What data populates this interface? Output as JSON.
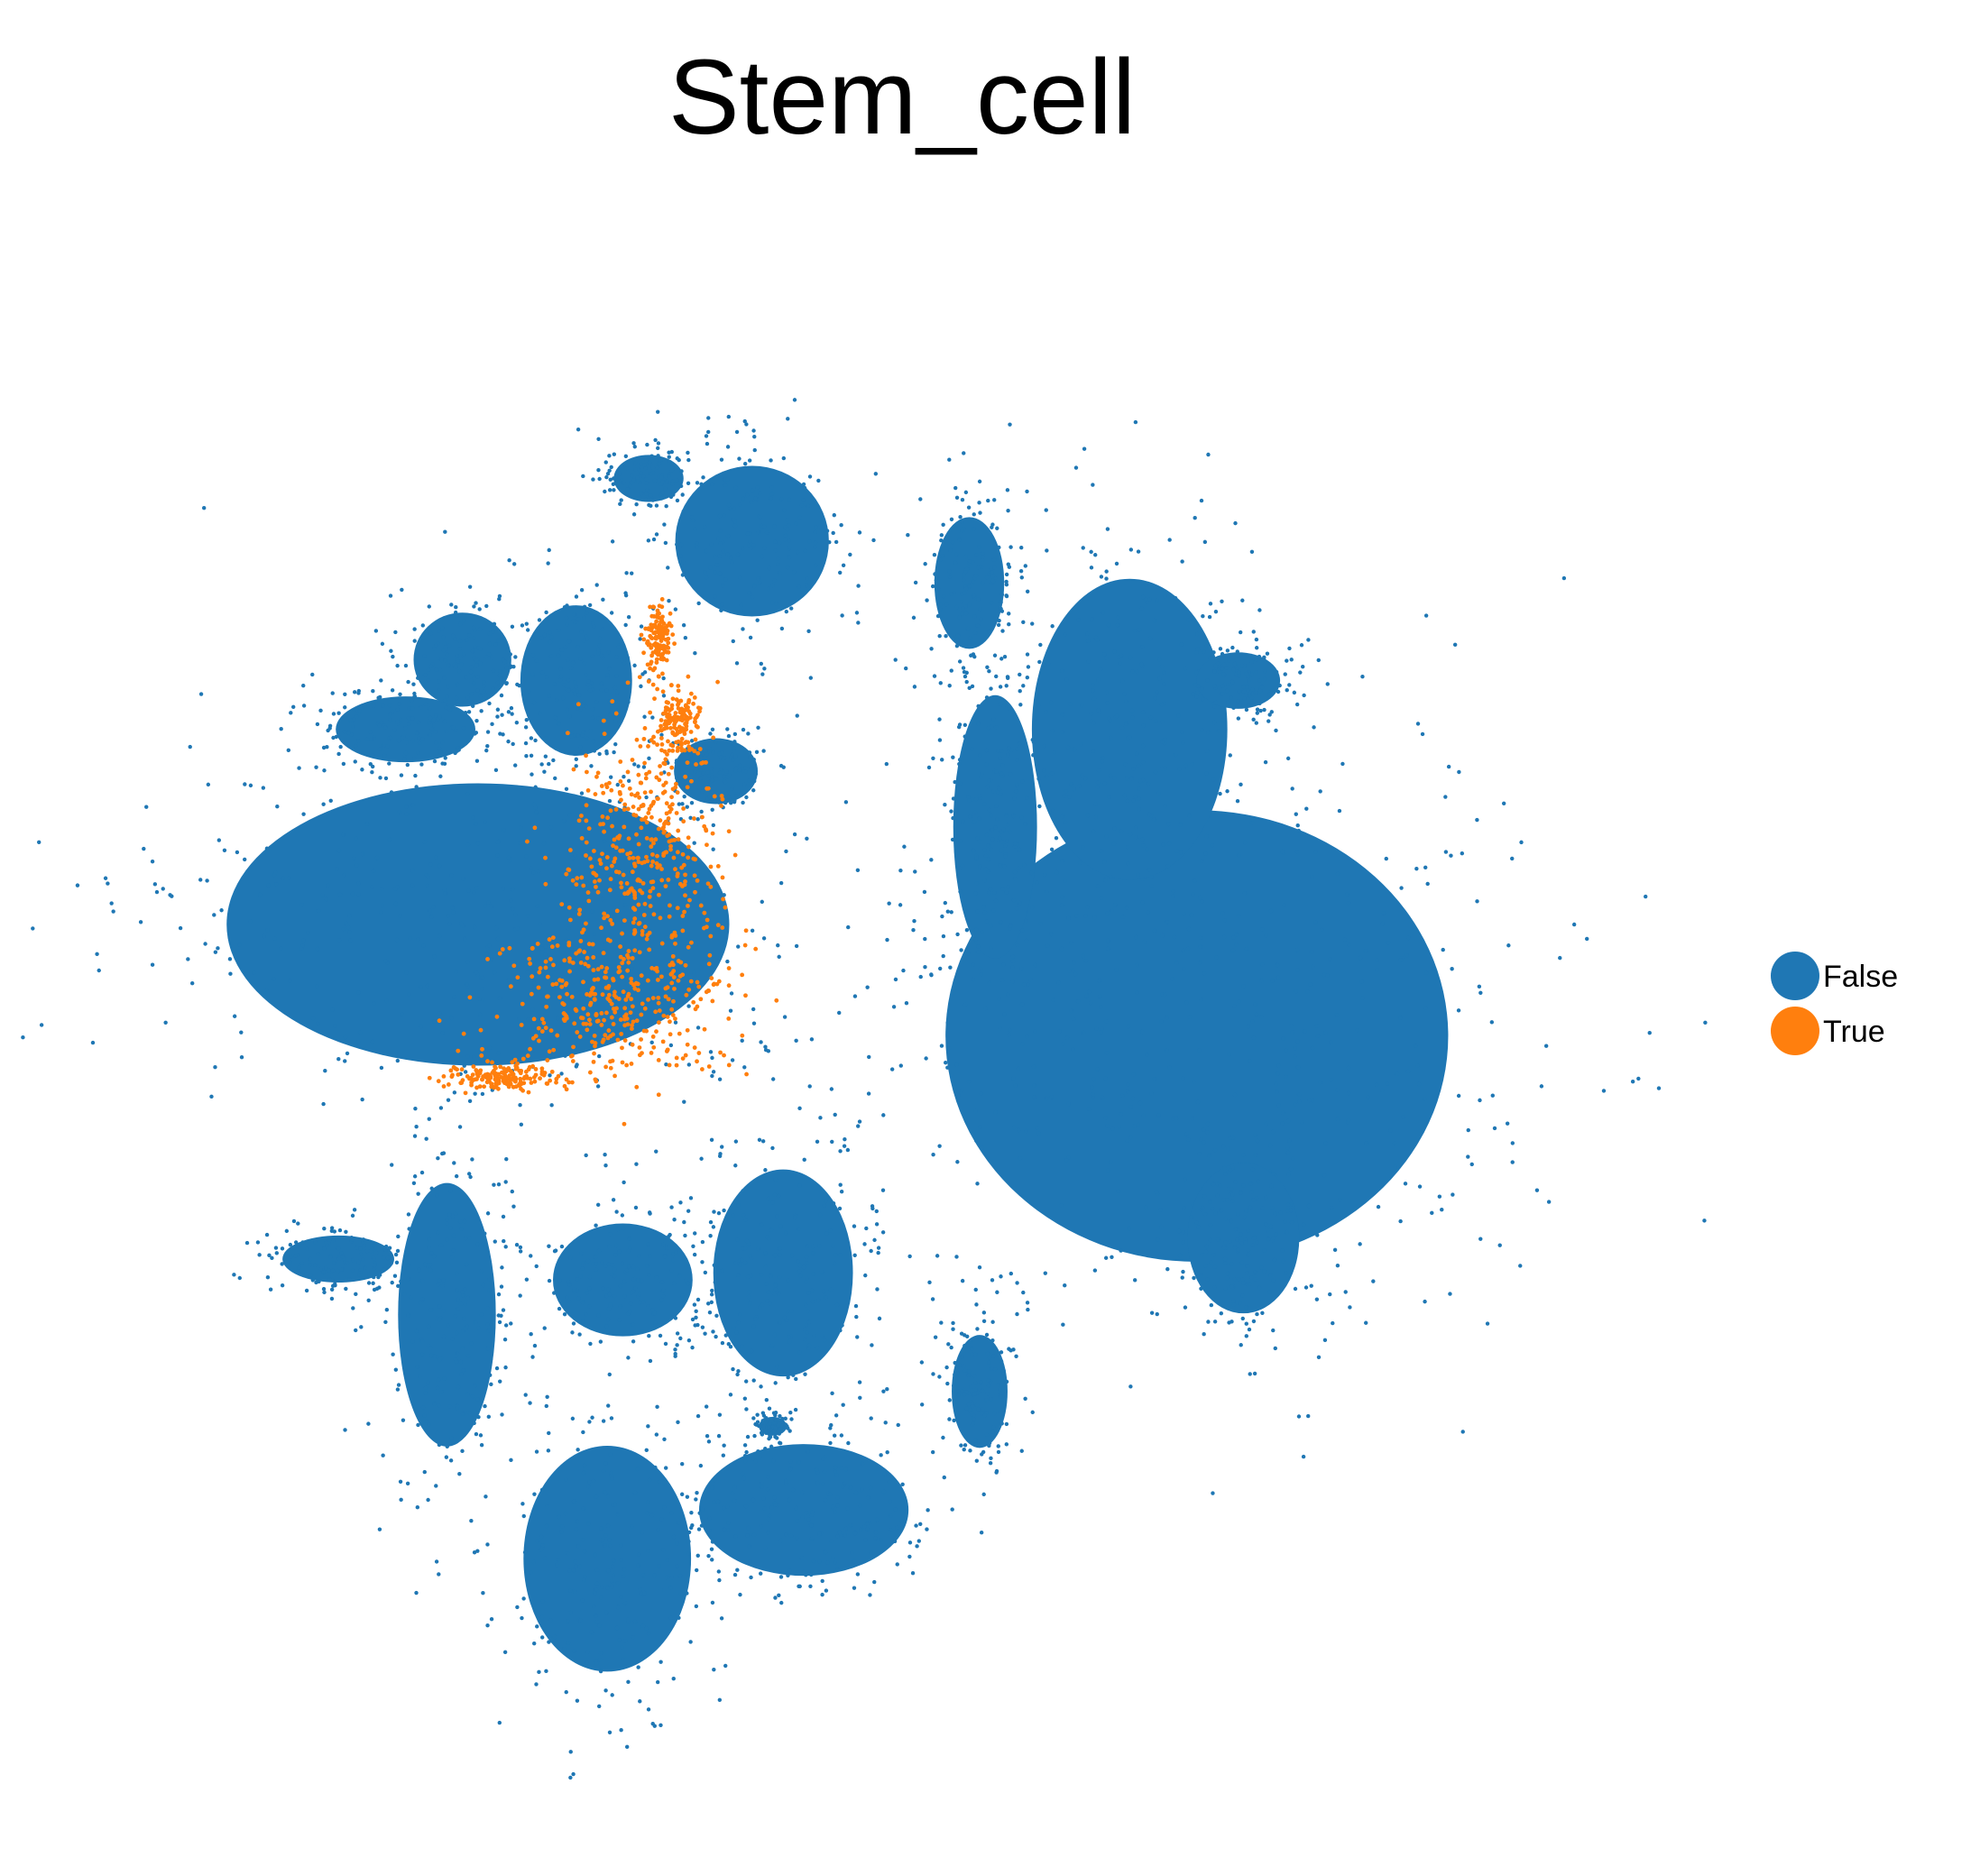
{
  "chart_data": {
    "type": "scatter",
    "title": "Stem_cell",
    "xlabel": "",
    "ylabel": "",
    "grid": false,
    "axes_visible": false,
    "legend_position": "right",
    "series": [
      {
        "name": "False",
        "color": "#1f77b4"
      },
      {
        "name": "True",
        "color": "#ff7f0e"
      }
    ],
    "clusters": [
      {
        "series": "False",
        "center": [
          -8.2,
          1.1
        ],
        "spread": [
          3.6,
          1.5
        ]
      },
      {
        "series": "False",
        "center": [
          -9.6,
          3.9
        ],
        "spread": [
          1.0,
          0.35
        ]
      },
      {
        "series": "False",
        "center": [
          -8.5,
          4.9
        ],
        "spread": [
          0.7,
          0.5
        ]
      },
      {
        "series": "False",
        "center": [
          -6.3,
          4.6
        ],
        "spread": [
          0.8,
          0.8
        ]
      },
      {
        "series": "False",
        "center": [
          -3.6,
          3.3
        ],
        "spread": [
          0.6,
          0.35
        ]
      },
      {
        "series": "False",
        "center": [
          -4.9,
          7.5
        ],
        "spread": [
          0.5,
          0.25
        ]
      },
      {
        "series": "False",
        "center": [
          -2.9,
          6.6
        ],
        "spread": [
          1.1,
          0.8
        ]
      },
      {
        "series": "False",
        "center": [
          5.7,
          -0.5
        ],
        "spread": [
          3.6,
          2.4
        ]
      },
      {
        "series": "False",
        "center": [
          4.4,
          3.9
        ],
        "spread": [
          1.4,
          1.6
        ]
      },
      {
        "series": "False",
        "center": [
          1.8,
          2.5
        ],
        "spread": [
          0.6,
          1.4
        ]
      },
      {
        "series": "False",
        "center": [
          6.5,
          4.6
        ],
        "spread": [
          0.6,
          0.3
        ]
      },
      {
        "series": "False",
        "center": [
          6.6,
          -3.4
        ],
        "spread": [
          0.8,
          0.8
        ]
      },
      {
        "series": "False",
        "center": [
          1.3,
          6.0
        ],
        "spread": [
          0.5,
          0.7
        ]
      },
      {
        "series": "False",
        "center": [
          -10.9,
          -3.7
        ],
        "spread": [
          0.8,
          0.25
        ]
      },
      {
        "series": "False",
        "center": [
          -8.8,
          -4.5
        ],
        "spread": [
          0.7,
          1.4
        ]
      },
      {
        "series": "False",
        "center": [
          -5.4,
          -4.0
        ],
        "spread": [
          1.0,
          0.6
        ]
      },
      {
        "series": "False",
        "center": [
          -2.3,
          -3.9
        ],
        "spread": [
          1.0,
          1.1
        ]
      },
      {
        "series": "False",
        "center": [
          -5.7,
          -8.0
        ],
        "spread": [
          1.2,
          1.2
        ]
      },
      {
        "series": "False",
        "center": [
          -1.9,
          -7.3
        ],
        "spread": [
          1.5,
          0.7
        ]
      },
      {
        "series": "False",
        "center": [
          -2.5,
          -6.1
        ],
        "spread": [
          0.2,
          0.1
        ]
      },
      {
        "series": "False",
        "center": [
          1.5,
          -5.6
        ],
        "spread": [
          0.4,
          0.6
        ]
      },
      {
        "series": "True",
        "center": [
          -5.0,
          2.3
        ],
        "spread": [
          1.2,
          1.4
        ]
      },
      {
        "series": "True",
        "center": [
          -4.3,
          4.0
        ],
        "spread": [
          0.35,
          0.45
        ]
      },
      {
        "series": "True",
        "center": [
          -4.7,
          5.2
        ],
        "spread": [
          0.2,
          0.4
        ]
      },
      {
        "series": "True",
        "center": [
          -7.8,
          -1.1
        ],
        "spread": [
          0.8,
          0.15
        ]
      },
      {
        "series": "True",
        "center": [
          -5.6,
          0.0
        ],
        "spread": [
          2.0,
          1.0
        ]
      }
    ],
    "xlim": [
      -15,
      15
    ],
    "ylim": [
      -11,
      11
    ]
  },
  "legend": {
    "items": [
      {
        "label": "False",
        "color": "#1f77b4"
      },
      {
        "label": "True",
        "color": "#ff7f0e"
      }
    ]
  }
}
